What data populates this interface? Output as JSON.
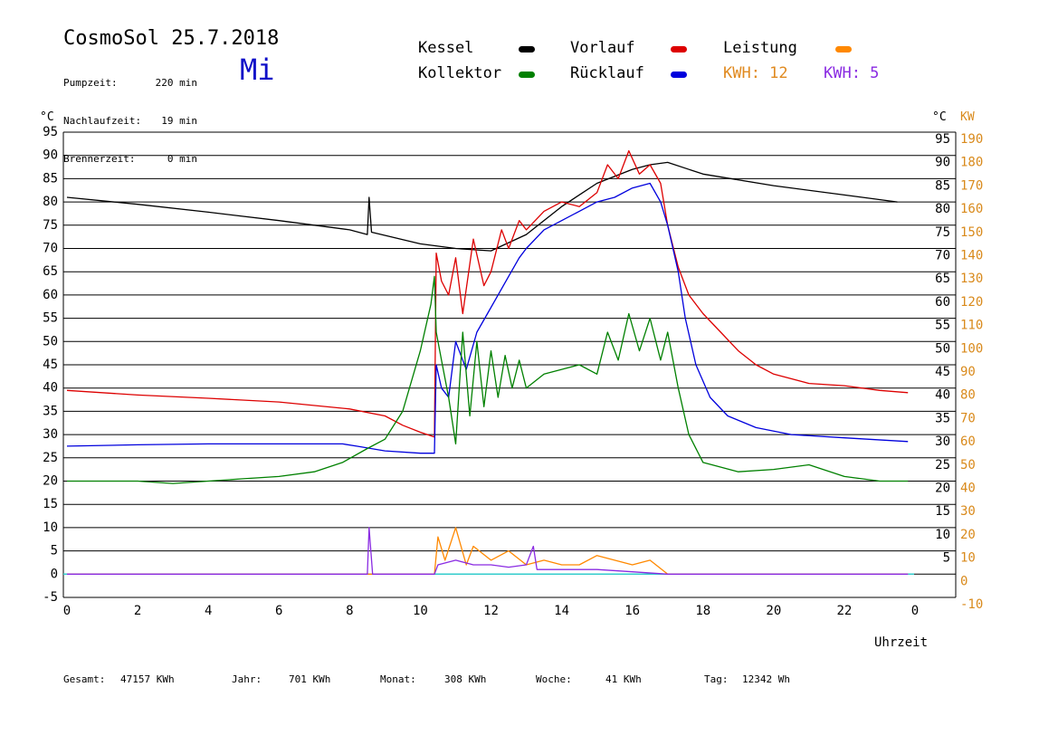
{
  "header": {
    "title": "CosmoSol 25.7.2018",
    "weekday": "Mi",
    "stats": [
      {
        "label": "Pumpzeit:",
        "value": "220 min"
      },
      {
        "label": "Nachlaufzeit:",
        "value": "19 min"
      },
      {
        "label": "Brennerzeit:",
        "value": "0 min"
      }
    ]
  },
  "legend": {
    "kessel": {
      "label": "Kessel",
      "color": "#000000"
    },
    "vorlauf": {
      "label": "Vorlauf",
      "color": "#dd0000"
    },
    "leistung": {
      "label": "Leistung",
      "color": "#ff8800"
    },
    "kollektor": {
      "label": "Kollektor",
      "color": "#008000"
    },
    "ruecklauf": {
      "label": "Rücklauf",
      "color": "#0000dd"
    },
    "kwh1": {
      "label": "KWH: 12",
      "color": "#e08a20"
    },
    "kwh2": {
      "label": "KWH: 5",
      "color": "#8a2be2"
    }
  },
  "footer": {
    "gesamt_label": "Gesamt:",
    "gesamt_value": "47157 KWh",
    "jahr_label": "Jahr:",
    "jahr_value": "701 KWh",
    "monat_label": "Monat:",
    "monat_value": "308 KWh",
    "woche_label": "Woche:",
    "woche_value": "41 KWh",
    "tag_label": "Tag:",
    "tag_value": "12342 Wh"
  },
  "chart_data": {
    "type": "line",
    "xlabel": "Uhrzeit",
    "ylabel_left": "°C",
    "ylabel_right_1": "°C",
    "ylabel_right_2": "KW",
    "x_ticks": [
      "0",
      "2",
      "4",
      "6",
      "8",
      "10",
      "12",
      "14",
      "16",
      "18",
      "20",
      "22",
      "0"
    ],
    "xlim": [
      0,
      24
    ],
    "ylim": [
      -5,
      95
    ],
    "y_ticks_left": [
      95,
      90,
      85,
      80,
      75,
      70,
      65,
      60,
      55,
      50,
      45,
      40,
      35,
      30,
      25,
      20,
      15,
      10,
      5,
      0,
      -5
    ],
    "y_ticks_right_c": [
      95,
      90,
      85,
      80,
      75,
      70,
      65,
      60,
      55,
      50,
      45,
      40,
      35,
      30,
      25,
      20,
      15,
      10,
      5
    ],
    "y_ticks_right_kw": [
      190,
      180,
      170,
      160,
      150,
      140,
      130,
      120,
      110,
      100,
      90,
      80,
      70,
      60,
      50,
      40,
      30,
      20,
      10,
      0,
      -10
    ],
    "grid": true,
    "reference_line": {
      "y": 0,
      "color": "#33cccc"
    },
    "series": [
      {
        "name": "Kessel",
        "color": "#000000",
        "points": [
          [
            0,
            81
          ],
          [
            2,
            79.5
          ],
          [
            4,
            77.8
          ],
          [
            6,
            76
          ],
          [
            8,
            74
          ],
          [
            8.5,
            73
          ],
          [
            8.55,
            81
          ],
          [
            8.62,
            73.5
          ],
          [
            10,
            71
          ],
          [
            11,
            70
          ],
          [
            12,
            69.5
          ],
          [
            13,
            73
          ],
          [
            14,
            79
          ],
          [
            15,
            84
          ],
          [
            16,
            87
          ],
          [
            16.5,
            88
          ],
          [
            17,
            88.5
          ],
          [
            18,
            86
          ],
          [
            20,
            83.5
          ],
          [
            22,
            81.5
          ],
          [
            23.5,
            80
          ]
        ]
      },
      {
        "name": "Vorlauf",
        "color": "#dd0000",
        "points": [
          [
            0,
            39.5
          ],
          [
            2,
            38.5
          ],
          [
            4,
            37.8
          ],
          [
            6,
            37
          ],
          [
            8,
            35.5
          ],
          [
            9,
            34
          ],
          [
            9.5,
            32
          ],
          [
            10,
            30.5
          ],
          [
            10.4,
            29.5
          ],
          [
            10.45,
            69
          ],
          [
            10.6,
            63
          ],
          [
            10.8,
            60
          ],
          [
            11,
            68
          ],
          [
            11.2,
            56
          ],
          [
            11.5,
            72
          ],
          [
            11.8,
            62
          ],
          [
            12,
            65
          ],
          [
            12.3,
            74
          ],
          [
            12.5,
            70
          ],
          [
            12.8,
            76
          ],
          [
            13,
            74
          ],
          [
            13.5,
            78
          ],
          [
            14,
            80
          ],
          [
            14.5,
            79
          ],
          [
            15,
            82
          ],
          [
            15.3,
            88
          ],
          [
            15.6,
            85
          ],
          [
            15.9,
            91
          ],
          [
            16.2,
            86
          ],
          [
            16.5,
            88
          ],
          [
            16.8,
            84
          ],
          [
            17,
            75
          ],
          [
            17.3,
            66
          ],
          [
            17.6,
            60
          ],
          [
            18,
            56
          ],
          [
            18.5,
            52
          ],
          [
            19,
            48
          ],
          [
            19.5,
            45
          ],
          [
            20,
            43
          ],
          [
            21,
            41
          ],
          [
            22,
            40.5
          ],
          [
            23,
            39.5
          ],
          [
            23.8,
            39
          ]
        ]
      },
      {
        "name": "Rücklauf",
        "color": "#0000dd",
        "points": [
          [
            0,
            27.5
          ],
          [
            2,
            27.8
          ],
          [
            4,
            28
          ],
          [
            6,
            28
          ],
          [
            7.8,
            28
          ],
          [
            8.2,
            27.5
          ],
          [
            9,
            26.5
          ],
          [
            10,
            26
          ],
          [
            10.4,
            26
          ],
          [
            10.45,
            45
          ],
          [
            10.6,
            40
          ],
          [
            10.8,
            38
          ],
          [
            11,
            50
          ],
          [
            11.3,
            44
          ],
          [
            11.6,
            52
          ],
          [
            11.9,
            56
          ],
          [
            12.2,
            60
          ],
          [
            12.5,
            64
          ],
          [
            12.8,
            68
          ],
          [
            13,
            70
          ],
          [
            13.5,
            74
          ],
          [
            14,
            76
          ],
          [
            14.5,
            78
          ],
          [
            15,
            80
          ],
          [
            15.5,
            81
          ],
          [
            16,
            83
          ],
          [
            16.5,
            84
          ],
          [
            16.8,
            80
          ],
          [
            17,
            75
          ],
          [
            17.3,
            65
          ],
          [
            17.5,
            55
          ],
          [
            17.8,
            45
          ],
          [
            18.2,
            38
          ],
          [
            18.7,
            34
          ],
          [
            19.5,
            31.5
          ],
          [
            20.5,
            30
          ],
          [
            22,
            29.3
          ],
          [
            23.8,
            28.5
          ]
        ]
      },
      {
        "name": "Kollektor",
        "color": "#008000",
        "points": [
          [
            0,
            20
          ],
          [
            2,
            20
          ],
          [
            3,
            19.5
          ],
          [
            4,
            20
          ],
          [
            5,
            20.5
          ],
          [
            6,
            21
          ],
          [
            7,
            22
          ],
          [
            7.8,
            24
          ],
          [
            8.5,
            27
          ],
          [
            9,
            29
          ],
          [
            9.5,
            35
          ],
          [
            10,
            48
          ],
          [
            10.3,
            58
          ],
          [
            10.4,
            64
          ],
          [
            10.45,
            52
          ],
          [
            10.6,
            46
          ],
          [
            10.8,
            38
          ],
          [
            11,
            28
          ],
          [
            11.2,
            52
          ],
          [
            11.4,
            34
          ],
          [
            11.6,
            50
          ],
          [
            11.8,
            36
          ],
          [
            12,
            48
          ],
          [
            12.2,
            38
          ],
          [
            12.4,
            47
          ],
          [
            12.6,
            40
          ],
          [
            12.8,
            46
          ],
          [
            13,
            40
          ],
          [
            13.5,
            43
          ],
          [
            14,
            44
          ],
          [
            14.5,
            45
          ],
          [
            15,
            43
          ],
          [
            15.3,
            52
          ],
          [
            15.6,
            46
          ],
          [
            15.9,
            56
          ],
          [
            16.2,
            48
          ],
          [
            16.5,
            55
          ],
          [
            16.8,
            46
          ],
          [
            17,
            52
          ],
          [
            17.3,
            40
          ],
          [
            17.6,
            30
          ],
          [
            18,
            24
          ],
          [
            19,
            22
          ],
          [
            20,
            22.5
          ],
          [
            21,
            23.5
          ],
          [
            22,
            21
          ],
          [
            23,
            20
          ],
          [
            23.8,
            20
          ]
        ]
      },
      {
        "name": "Leistung",
        "color": "#ff8800",
        "points": [
          [
            0,
            0
          ],
          [
            10.4,
            0
          ],
          [
            10.5,
            8
          ],
          [
            10.7,
            3
          ],
          [
            11,
            10
          ],
          [
            11.3,
            2
          ],
          [
            11.5,
            6
          ],
          [
            12,
            3
          ],
          [
            12.5,
            5
          ],
          [
            13,
            2
          ],
          [
            13.5,
            3
          ],
          [
            14,
            2
          ],
          [
            14.5,
            2
          ],
          [
            15,
            4
          ],
          [
            15.5,
            3
          ],
          [
            16,
            2
          ],
          [
            16.5,
            3
          ],
          [
            17,
            0
          ],
          [
            23.8,
            0
          ]
        ]
      },
      {
        "name": "KWH 5",
        "color": "#8a2be2",
        "points": [
          [
            0,
            0
          ],
          [
            8.5,
            0
          ],
          [
            8.55,
            10
          ],
          [
            8.65,
            0
          ],
          [
            10.4,
            0
          ],
          [
            10.5,
            2
          ],
          [
            11,
            3
          ],
          [
            11.5,
            2
          ],
          [
            12,
            2
          ],
          [
            12.5,
            1.5
          ],
          [
            13,
            2
          ],
          [
            13.2,
            6
          ],
          [
            13.3,
            1
          ],
          [
            14,
            1
          ],
          [
            15,
            1
          ],
          [
            16,
            0.5
          ],
          [
            17,
            0
          ],
          [
            23.8,
            0
          ]
        ]
      }
    ]
  }
}
